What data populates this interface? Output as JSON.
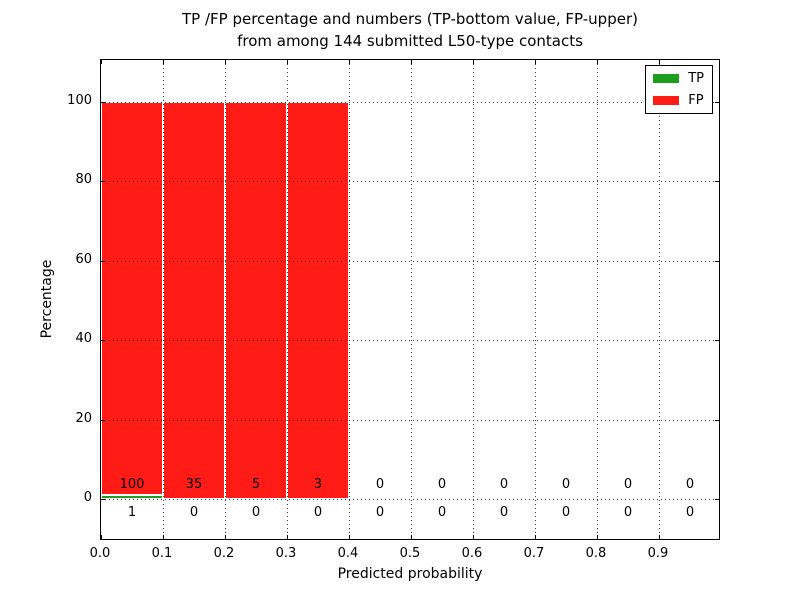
{
  "title": {
    "line1": "TP /FP percentage and numbers (TP-bottom value, FP-upper)",
    "line2": "from among 144 submitted L50-type contacts"
  },
  "chart_data": {
    "type": "bar",
    "stacked": true,
    "title": "TP /FP percentage and numbers (TP-bottom value, FP-upper)\nfrom among 144 submitted L50-type contacts",
    "xlabel": "Predicted probability",
    "ylabel": "Percentage",
    "xlim": [
      0.0,
      1.0
    ],
    "ylim": [
      -10.5,
      110.5
    ],
    "bin_edges": [
      0.0,
      0.1,
      0.2,
      0.3,
      0.4,
      0.5,
      0.6,
      0.7,
      0.8,
      0.9,
      1.0
    ],
    "xtick_labels": [
      "0.0",
      "0.1",
      "0.2",
      "0.3",
      "0.4",
      "0.5",
      "0.6",
      "0.7",
      "0.8",
      "0.9"
    ],
    "xtick_values": [
      0.0,
      0.1,
      0.2,
      0.3,
      0.4,
      0.5,
      0.6,
      0.7,
      0.8,
      0.9
    ],
    "ytick_labels": [
      "0",
      "20",
      "40",
      "60",
      "80",
      "100"
    ],
    "ytick_values": [
      0,
      20,
      40,
      60,
      80,
      100
    ],
    "grid": "dotted",
    "grid_over_bars": true,
    "series": [
      {
        "name": "TP",
        "color": "#1e9e1e",
        "percent": [
          1,
          0,
          0,
          0,
          0,
          0,
          0,
          0,
          0,
          0
        ],
        "counts": [
          1,
          0,
          0,
          0,
          0,
          0,
          0,
          0,
          0,
          0
        ]
      },
      {
        "name": "FP",
        "color": "#ff1c17",
        "percent": [
          99,
          100,
          100,
          100,
          0,
          0,
          0,
          0,
          0,
          0
        ],
        "counts": [
          100,
          35,
          5,
          3,
          0,
          0,
          0,
          0,
          0,
          0
        ]
      }
    ],
    "annotations": {
      "fp_row_note": "FP counts shown just above the zero line",
      "tp_row_note": "TP counts shown just below the zero line"
    },
    "legend": {
      "position": "upper right",
      "entries": [
        "TP",
        "FP"
      ]
    },
    "colors": {
      "tp": "#1e9e1e",
      "fp": "#ff1c17",
      "grid": "#3a3a3a",
      "background": "#ffffff",
      "spine": "#000000"
    }
  }
}
